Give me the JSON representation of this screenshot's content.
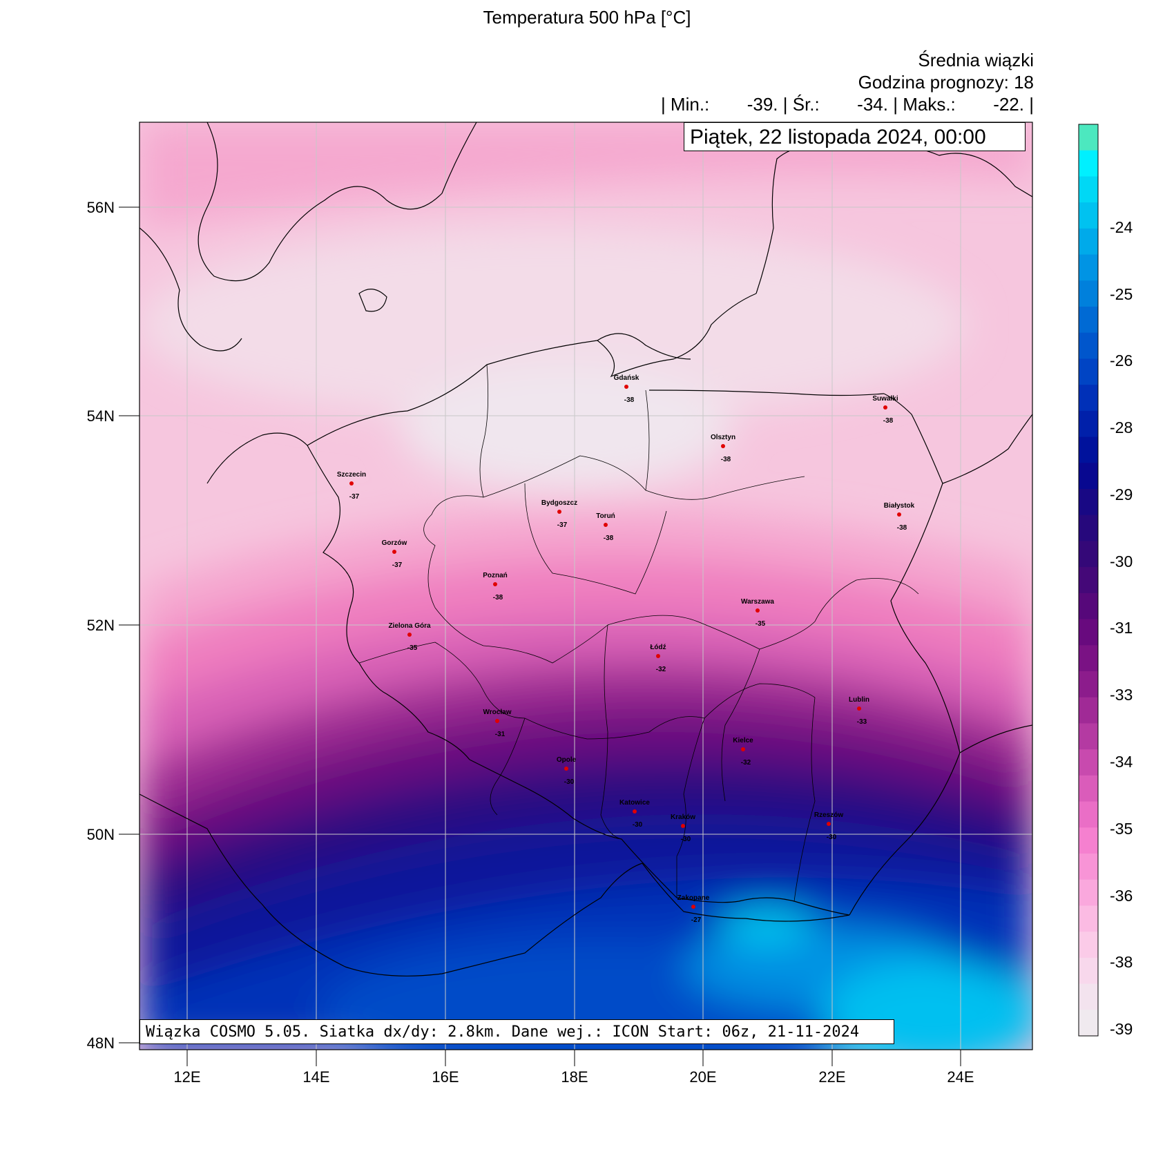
{
  "title": "Temperatura 500 hPa [°C]",
  "header": {
    "line1": "Średnia wiązki",
    "line2": "Godzina prognozy: 18",
    "stats": {
      "min_label": "| Min.:",
      "min_value": "-39.",
      "avg_label": "| Śr.:",
      "avg_value": "-34.",
      "max_label": "| Maks.:",
      "max_value": "-22.",
      "end": "|"
    }
  },
  "date_label": "Piątek, 22 listopada 2024, 00:00",
  "footer": "Wiązka COSMO 5.05. Siatka dx/dy: 2.8km. Dane wej.: ICON Start: 06z, 21-11-2024",
  "axes": {
    "lat_ticks": [
      "56N",
      "54N",
      "52N",
      "50N",
      "48N"
    ],
    "lon_ticks": [
      "12E",
      "14E",
      "16E",
      "18E",
      "20E",
      "22E",
      "24E"
    ]
  },
  "colorbar": {
    "labels": [
      "-24",
      "-25",
      "-26",
      "-28",
      "-29",
      "-30",
      "-31",
      "-33",
      "-34",
      "-35",
      "-36",
      "-38",
      "-39"
    ],
    "colors": [
      "#4ce8bf",
      "#00f0ff",
      "#00d8f5",
      "#00c2f0",
      "#00aaea",
      "#0094e4",
      "#0080dc",
      "#006ad4",
      "#0056cc",
      "#0044c4",
      "#0030b8",
      "#0020aa",
      "#00129c",
      "#080890",
      "#180884",
      "#26087c",
      "#340878",
      "#440878",
      "#56087a",
      "#680a7e",
      "#7a1284",
      "#8c1c8c",
      "#a02a96",
      "#b43aa2",
      "#c84aae",
      "#da5cba",
      "#ea6ec6",
      "#f580cf",
      "#f894d6",
      "#faa8dd",
      "#fbbbe3",
      "#fbcbe8",
      "#f8d8ec",
      "#f3e3ee",
      "#f0eaef"
    ]
  },
  "cities": [
    {
      "name": "Gdańsk",
      "value": "-38"
    },
    {
      "name": "Suwałki",
      "value": "-38"
    },
    {
      "name": "Olsztyn",
      "value": "-38"
    },
    {
      "name": "Szczecin",
      "value": "-37"
    },
    {
      "name": "Bydgoszcz",
      "value": "-37"
    },
    {
      "name": "Toruń",
      "value": "-38"
    },
    {
      "name": "Białystok",
      "value": "-38"
    },
    {
      "name": "Gorzów",
      "value": "-37"
    },
    {
      "name": "Poznań",
      "value": "-38"
    },
    {
      "name": "Warszawa",
      "value": "-35"
    },
    {
      "name": "Zielona Góra",
      "value": "-35"
    },
    {
      "name": "Łódź",
      "value": "-32"
    },
    {
      "name": "Lublin",
      "value": "-33"
    },
    {
      "name": "Wrocław",
      "value": "-31"
    },
    {
      "name": "Kielce",
      "value": "-32"
    },
    {
      "name": "Opole",
      "value": "-30"
    },
    {
      "name": "Katowice",
      "value": "-30"
    },
    {
      "name": "Kraków",
      "value": "-30"
    },
    {
      "name": "Rzeszów",
      "value": "-30"
    },
    {
      "name": "Zakopane",
      "value": "-27"
    }
  ]
}
